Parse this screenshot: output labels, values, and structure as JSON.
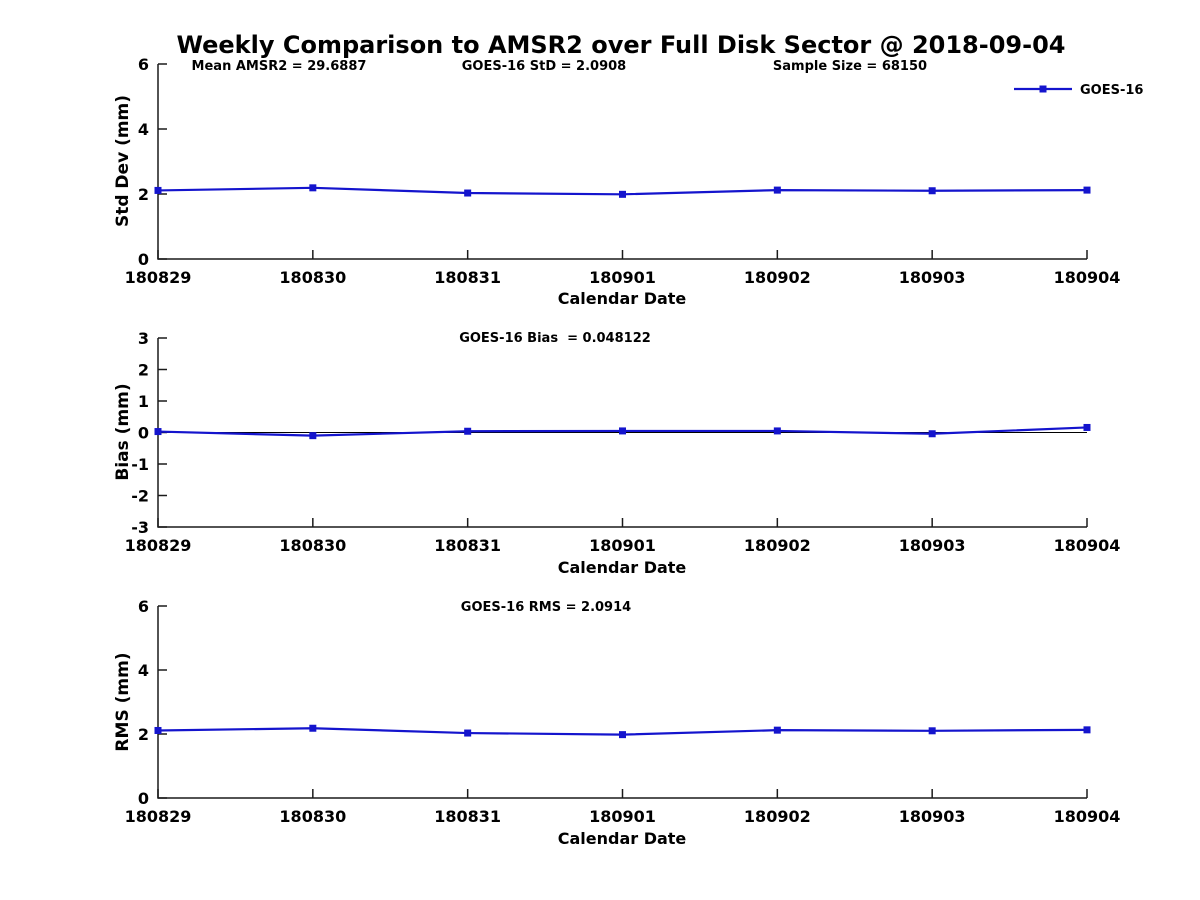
{
  "title": "Weekly Comparison to AMSR2 over Full Disk Sector @ 2018-09-04",
  "legend": {
    "label": "GOES-16"
  },
  "colors": {
    "line": "#1414cd",
    "marker": "#1414cd",
    "zero_line": "#000000",
    "axis": "#1a1a1a",
    "text": "#000000"
  },
  "chart_data": [
    {
      "type": "line",
      "annotations": [
        "Mean AMSR2 = 29.6887",
        "GOES-16 StD = 2.0908",
        "Sample Size = 68150"
      ],
      "categories": [
        "180829",
        "180830",
        "180831",
        "180901",
        "180902",
        "180903",
        "180904"
      ],
      "series": [
        {
          "name": "GOES-16",
          "values": [
            2.11,
            2.19,
            2.03,
            1.99,
            2.12,
            2.1,
            2.12
          ]
        }
      ],
      "xlabel": "Calendar Date",
      "ylabel": "Std Dev (mm)",
      "ylim": [
        0,
        6
      ],
      "yticks": [
        0,
        2,
        4,
        6
      ],
      "grid": false,
      "marker": "square",
      "legend_position": "top-right",
      "zero_line": false
    },
    {
      "type": "line",
      "annotations": [
        "GOES-16 Bias  = 0.048122"
      ],
      "categories": [
        "180829",
        "180830",
        "180831",
        "180901",
        "180902",
        "180903",
        "180904"
      ],
      "series": [
        {
          "name": "GOES-16",
          "values": [
            0.03,
            -0.1,
            0.04,
            0.05,
            0.05,
            -0.04,
            0.16
          ]
        }
      ],
      "xlabel": "Calendar Date",
      "ylabel": "Bias (mm)",
      "ylim": [
        -3,
        3
      ],
      "yticks": [
        -3,
        -2,
        -1,
        0,
        1,
        2,
        3
      ],
      "grid": false,
      "marker": "square",
      "zero_line": true
    },
    {
      "type": "line",
      "annotations": [
        "GOES-16 RMS = 2.0914"
      ],
      "categories": [
        "180829",
        "180830",
        "180831",
        "180901",
        "180902",
        "180903",
        "180904"
      ],
      "series": [
        {
          "name": "GOES-16",
          "values": [
            2.11,
            2.18,
            2.03,
            1.98,
            2.12,
            2.1,
            2.13
          ]
        }
      ],
      "xlabel": "Calendar Date",
      "ylabel": "RMS (mm)",
      "ylim": [
        0,
        6
      ],
      "yticks": [
        0,
        2,
        4,
        6
      ],
      "grid": false,
      "marker": "square",
      "zero_line": false
    }
  ]
}
